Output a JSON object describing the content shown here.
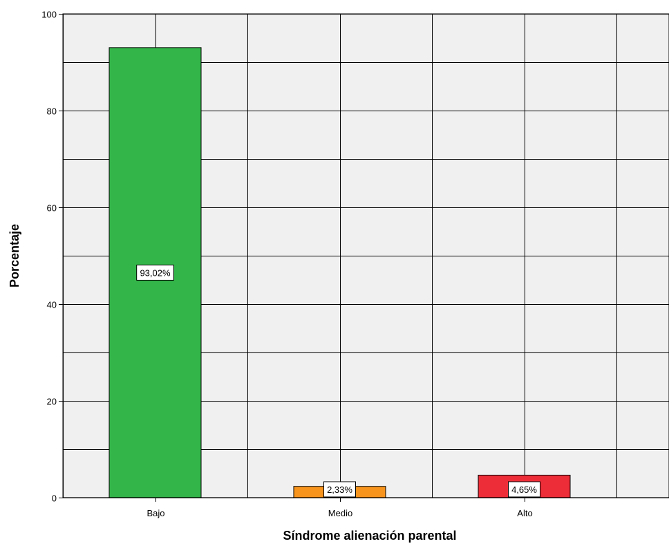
{
  "chart_data": {
    "type": "bar",
    "categories": [
      "Bajo",
      "Medio",
      "Alto"
    ],
    "values": [
      93.02,
      2.33,
      4.65
    ],
    "data_labels": [
      "93,02%",
      "2,33%",
      "4,65%"
    ],
    "bar_colors": [
      "#33b54a",
      "#f7941d",
      "#ed2d37"
    ],
    "title": "",
    "xlabel": "Síndrome alienación parental",
    "ylabel": "Porcentaje",
    "ylim": [
      0,
      100
    ],
    "yticks": [
      0,
      20,
      40,
      60,
      80,
      100
    ],
    "grid": true,
    "plot_background": "#f0f0f0",
    "legend": "none"
  }
}
